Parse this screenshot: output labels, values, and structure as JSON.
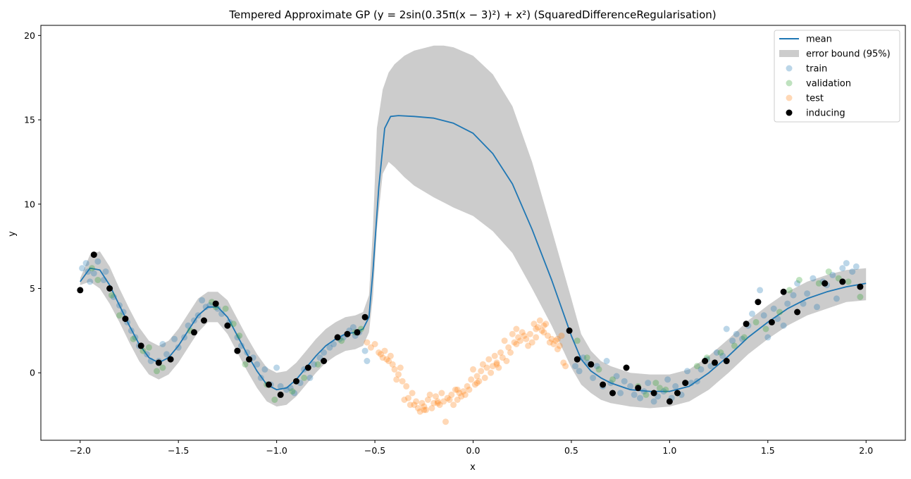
{
  "chart_data": {
    "type": "scatter",
    "title": "Tempered Approximate GP (y = 2sin(0.35π(x − 3)²) + x²) (SquaredDifferenceRegularisation)",
    "xlabel": "x",
    "ylabel": "y",
    "xlim": [
      -2.2,
      2.2
    ],
    "ylim": [
      -4.0,
      20.6
    ],
    "xticks": [
      -2.0,
      -1.5,
      -1.0,
      -0.5,
      0.0,
      0.5,
      1.0,
      1.5,
      2.0
    ],
    "xtick_labels": [
      "−2.0",
      "−1.5",
      "−1.0",
      "−0.5",
      "0.0",
      "0.5",
      "1.0",
      "1.5",
      "2.0"
    ],
    "yticks": [
      0,
      5,
      10,
      15,
      20
    ],
    "ytick_labels": [
      "0",
      "5",
      "10",
      "15",
      "20"
    ],
    "grid": false,
    "legend_position": "top-right",
    "colors": {
      "mean": "#1f77b4",
      "band": "#cccccc",
      "train": "#1f77b4",
      "validation": "#2ca02c",
      "test": "#ff7f0e",
      "inducing": "#000000"
    },
    "legend": [
      {
        "label": "mean",
        "kind": "line"
      },
      {
        "label": "error bound (95%)",
        "kind": "band"
      },
      {
        "label": "train",
        "kind": "train"
      },
      {
        "label": "validation",
        "kind": "validation"
      },
      {
        "label": "test",
        "kind": "test"
      },
      {
        "label": "inducing",
        "kind": "inducing"
      }
    ],
    "mean": {
      "x": [
        -2.0,
        -1.95,
        -1.9,
        -1.85,
        -1.8,
        -1.75,
        -1.7,
        -1.65,
        -1.6,
        -1.55,
        -1.5,
        -1.45,
        -1.4,
        -1.35,
        -1.3,
        -1.25,
        -1.2,
        -1.15,
        -1.1,
        -1.05,
        -1.0,
        -0.95,
        -0.9,
        -0.85,
        -0.8,
        -0.75,
        -0.7,
        -0.65,
        -0.6,
        -0.56,
        -0.53,
        -0.51,
        -0.48,
        -0.45,
        -0.42,
        -0.38,
        -0.3,
        -0.2,
        -0.1,
        0.0,
        0.1,
        0.2,
        0.3,
        0.4,
        0.5,
        0.55,
        0.6,
        0.65,
        0.7,
        0.8,
        0.9,
        1.0,
        1.1,
        1.2,
        1.3,
        1.4,
        1.5,
        1.6,
        1.7,
        1.8,
        1.9,
        2.0
      ],
      "y": [
        5.4,
        6.2,
        6.1,
        5.2,
        4.0,
        2.8,
        1.7,
        0.9,
        0.6,
        0.9,
        1.6,
        2.5,
        3.4,
        3.9,
        3.9,
        3.3,
        2.2,
        1.1,
        0.1,
        -0.7,
        -1.0,
        -0.9,
        -0.4,
        0.3,
        1.0,
        1.6,
        2.0,
        2.3,
        2.4,
        2.6,
        3.3,
        6.0,
        11.0,
        14.5,
        15.2,
        15.25,
        15.2,
        15.1,
        14.8,
        14.2,
        13.0,
        11.2,
        8.5,
        5.5,
        2.2,
        0.8,
        0.1,
        -0.3,
        -0.6,
        -1.0,
        -1.1,
        -1.1,
        -0.8,
        0.0,
        1.0,
        2.1,
        3.0,
        3.8,
        4.4,
        4.8,
        5.1,
        5.3
      ]
    },
    "error_band": {
      "x": [
        -2.0,
        -1.95,
        -1.9,
        -1.85,
        -1.8,
        -1.75,
        -1.7,
        -1.65,
        -1.6,
        -1.55,
        -1.5,
        -1.45,
        -1.4,
        -1.35,
        -1.3,
        -1.25,
        -1.2,
        -1.15,
        -1.1,
        -1.05,
        -1.0,
        -0.95,
        -0.9,
        -0.85,
        -0.8,
        -0.75,
        -0.7,
        -0.65,
        -0.6,
        -0.56,
        -0.53,
        -0.51,
        -0.49,
        -0.46,
        -0.43,
        -0.4,
        -0.35,
        -0.3,
        -0.2,
        -0.15,
        -0.1,
        0.0,
        0.1,
        0.2,
        0.3,
        0.4,
        0.5,
        0.55,
        0.6,
        0.65,
        0.7,
        0.8,
        0.9,
        1.0,
        1.1,
        1.2,
        1.3,
        1.4,
        1.5,
        1.6,
        1.7,
        1.8,
        1.9,
        2.0
      ],
      "upper": [
        5.6,
        7.0,
        7.2,
        6.3,
        5.0,
        3.8,
        2.7,
        1.9,
        1.6,
        1.9,
        2.6,
        3.5,
        4.4,
        4.8,
        4.8,
        4.3,
        3.2,
        2.1,
        1.1,
        0.3,
        0.0,
        0.1,
        0.6,
        1.3,
        2.0,
        2.6,
        3.0,
        3.3,
        3.4,
        3.6,
        4.6,
        8.5,
        14.5,
        16.8,
        17.8,
        18.3,
        18.8,
        19.1,
        19.4,
        19.4,
        19.3,
        18.8,
        17.7,
        15.8,
        12.5,
        8.5,
        4.4,
        2.3,
        1.3,
        0.7,
        0.4,
        0.0,
        -0.1,
        -0.1,
        0.2,
        1.0,
        2.0,
        3.1,
        4.0,
        4.8,
        5.4,
        5.8,
        6.1,
        6.2
      ],
      "lower": [
        5.2,
        5.4,
        5.0,
        4.1,
        3.0,
        1.8,
        0.7,
        -0.1,
        -0.4,
        -0.1,
        0.6,
        1.5,
        2.4,
        3.0,
        3.0,
        2.3,
        1.2,
        0.1,
        -0.9,
        -1.7,
        -2.0,
        -1.9,
        -1.4,
        -0.7,
        0.0,
        0.6,
        1.0,
        1.3,
        1.4,
        1.6,
        2.4,
        4.5,
        8.5,
        11.8,
        12.5,
        12.2,
        11.6,
        11.1,
        10.4,
        10.1,
        9.8,
        9.3,
        8.4,
        7.1,
        5.0,
        2.8,
        0.3,
        -0.7,
        -1.2,
        -1.6,
        -1.8,
        -2.0,
        -2.1,
        -2.0,
        -1.7,
        -1.0,
        0.0,
        1.1,
        2.0,
        2.8,
        3.4,
        3.8,
        4.2,
        4.3
      ]
    },
    "train": {
      "x": [
        -1.99,
        -1.97,
        -1.96,
        -1.95,
        -1.93,
        -1.91,
        -1.88,
        -1.87,
        -1.85,
        -1.83,
        -1.8,
        -1.78,
        -1.76,
        -1.74,
        -1.72,
        -1.7,
        -1.66,
        -1.64,
        -1.6,
        -1.58,
        -1.56,
        -1.52,
        -1.5,
        -1.47,
        -1.45,
        -1.42,
        -1.4,
        -1.38,
        -1.36,
        -1.34,
        -1.3,
        -1.28,
        -1.24,
        -1.2,
        -1.18,
        -1.15,
        -1.12,
        -1.1,
        -1.08,
        -1.06,
        -1.03,
        -1.0,
        -0.98,
        -0.95,
        -0.93,
        -0.91,
        -0.88,
        -0.86,
        -0.83,
        -0.81,
        -0.78,
        -0.76,
        -0.73,
        -0.71,
        -0.68,
        -0.66,
        -0.63,
        -0.61,
        -0.6,
        -0.58,
        -0.55,
        -0.54,
        0.52,
        0.54,
        0.56,
        0.58,
        0.61,
        0.63,
        0.66,
        0.68,
        0.7,
        0.73,
        0.75,
        0.77,
        0.8,
        0.82,
        0.85,
        0.87,
        0.89,
        0.92,
        0.94,
        0.97,
        0.99,
        1.01,
        1.03,
        1.06,
        1.09,
        1.11,
        1.14,
        1.16,
        1.19,
        1.21,
        1.24,
        1.27,
        1.29,
        1.32,
        1.34,
        1.37,
        1.4,
        1.42,
        1.45,
        1.46,
        1.48,
        1.5,
        1.53,
        1.55,
        1.58,
        1.6,
        1.63,
        1.65,
        1.68,
        1.7,
        1.73,
        1.75,
        1.78,
        1.8,
        1.83,
        1.85,
        1.88,
        1.9,
        1.93,
        1.95
      ],
      "y": [
        6.2,
        6.5,
        6.0,
        5.4,
        5.9,
        6.6,
        5.5,
        6.0,
        5.0,
        4.5,
        4.0,
        3.6,
        3.0,
        2.5,
        2.1,
        1.6,
        1.1,
        0.7,
        0.7,
        1.7,
        1.1,
        2.0,
        1.5,
        2.1,
        2.8,
        3.1,
        3.4,
        4.3,
        3.9,
        4.0,
        3.8,
        3.5,
        3.0,
        2.1,
        1.6,
        1.2,
        0.9,
        0.5,
        -0.3,
        0.2,
        -0.7,
        0.3,
        -0.8,
        -1.0,
        -0.9,
        -1.2,
        -0.6,
        0.2,
        -0.3,
        0.5,
        0.9,
        1.2,
        1.5,
        1.7,
        2.0,
        2.1,
        2.5,
        2.7,
        2.2,
        2.4,
        1.3,
        0.7,
        0.4,
        0.1,
        0.9,
        0.6,
        -0.3,
        0.4,
        -0.8,
        0.7,
        -0.6,
        -0.2,
        -1.2,
        -0.5,
        -0.8,
        -1.3,
        -1.5,
        -1.1,
        -0.6,
        -1.7,
        -1.4,
        -1.1,
        -0.4,
        -1.5,
        -0.8,
        -1.3,
        0.1,
        -0.6,
        -0.5,
        0.2,
        0.8,
        0.4,
        1.2,
        1.0,
        2.6,
        1.9,
        2.3,
        2.0,
        2.8,
        3.5,
        4.2,
        4.9,
        3.4,
        2.1,
        3.8,
        3.2,
        2.8,
        4.1,
        4.6,
        5.3,
        4.1,
        4.7,
        5.6,
        3.9,
        5.4,
        5.2,
        5.8,
        4.4,
        6.2,
        6.5,
        6.0,
        6.3
      ],
      "color": "#1f77b4"
    },
    "validation": {
      "x": [
        -1.94,
        -1.91,
        -1.84,
        -1.8,
        -1.73,
        -1.68,
        -1.65,
        -1.61,
        -1.58,
        -1.44,
        -1.33,
        -1.31,
        -1.26,
        -1.22,
        -1.19,
        -1.16,
        -1.05,
        -1.01,
        -0.92,
        -0.86,
        -0.79,
        -0.67,
        -0.6,
        -0.57,
        0.53,
        0.58,
        0.64,
        0.71,
        0.84,
        0.88,
        0.93,
        0.95,
        0.98,
        1.14,
        1.19,
        1.26,
        1.33,
        1.38,
        1.44,
        1.49,
        1.56,
        1.61,
        1.66,
        1.76,
        1.81,
        1.86,
        1.91,
        1.97
      ],
      "y": [
        6.2,
        5.5,
        4.6,
        3.4,
        2.0,
        1.3,
        1.5,
        0.1,
        0.3,
        2.5,
        4.2,
        3.9,
        3.8,
        2.9,
        2.2,
        0.5,
        -0.7,
        -1.6,
        -1.1,
        -0.3,
        0.5,
        1.9,
        2.4,
        2.6,
        1.9,
        0.9,
        0.2,
        -0.4,
        -0.8,
        -1.3,
        -0.6,
        -0.9,
        -1.0,
        0.4,
        0.9,
        1.2,
        1.6,
        2.1,
        3.0,
        2.6,
        3.6,
        4.9,
        5.5,
        5.3,
        6.0,
        5.6,
        5.4,
        4.5
      ],
      "color": "#2ca02c"
    },
    "test": {
      "x": [
        -0.54,
        -0.52,
        -0.5,
        -0.48,
        -0.46,
        -0.45,
        -0.43,
        -0.42,
        -0.41,
        -0.4,
        -0.38,
        -0.37,
        -0.36,
        -0.34,
        -0.33,
        -0.31,
        -0.3,
        -0.29,
        -0.28,
        -0.27,
        -0.26,
        -0.25,
        -0.24,
        -0.23,
        -0.22,
        -0.21,
        -0.2,
        -0.19,
        -0.18,
        -0.17,
        -0.16,
        -0.15,
        -0.14,
        -0.13,
        -0.12,
        -0.11,
        -0.1,
        -0.09,
        -0.08,
        -0.07,
        -0.06,
        -0.05,
        -0.04,
        -0.03,
        -0.02,
        -0.01,
        0.0,
        0.01,
        0.02,
        0.03,
        0.04,
        0.05,
        0.06,
        0.07,
        0.08,
        0.09,
        0.1,
        0.11,
        0.12,
        0.13,
        0.14,
        0.15,
        0.16,
        0.17,
        0.18,
        0.19,
        0.2,
        0.21,
        0.22,
        0.23,
        0.24,
        0.25,
        0.26,
        0.27,
        0.28,
        0.29,
        0.3,
        0.31,
        0.32,
        0.33,
        0.34,
        0.35,
        0.36,
        0.37,
        0.38,
        0.39,
        0.4,
        0.41,
        0.42,
        0.43,
        0.44,
        0.45,
        0.46,
        0.47,
        -0.47,
        -0.44,
        -0.39,
        -0.35,
        -0.32,
        -0.25,
        -0.18,
        -0.08,
        0.02,
        0.12,
        0.22,
        0.32,
        0.36,
        0.43
      ],
      "y": [
        1.8,
        1.5,
        1.7,
        1.2,
        0.9,
        1.3,
        0.7,
        1.0,
        0.5,
        0.2,
        -0.1,
        0.3,
        -0.5,
        -0.8,
        -1.5,
        -1.2,
        -1.9,
        -1.7,
        -2.1,
        -2.3,
        -1.8,
        -2.0,
        -2.2,
        -1.6,
        -1.3,
        -2.1,
        -1.8,
        -1.4,
        -1.7,
        -1.9,
        -1.2,
        -1.7,
        -2.9,
        -1.5,
        -1.6,
        -1.3,
        -1.9,
        -1.0,
        -1.6,
        -1.2,
        -1.4,
        -1.1,
        -1.3,
        -0.8,
        -1.0,
        -0.4,
        0.2,
        -0.7,
        -0.2,
        -0.5,
        0.1,
        0.5,
        -0.3,
        0.3,
        0.8,
        0.0,
        0.4,
        1.0,
        0.6,
        0.3,
        1.2,
        0.9,
        1.9,
        0.7,
        1.5,
        1.2,
        2.3,
        1.8,
        2.6,
        2.1,
        1.9,
        2.4,
        2.2,
        2.0,
        1.6,
        2.3,
        1.8,
        2.9,
        2.1,
        2.7,
        3.1,
        2.5,
        2.4,
        2.9,
        2.2,
        1.8,
        2.0,
        1.7,
        1.9,
        2.0,
        1.6,
        2.2,
        0.6,
        0.4,
        1.1,
        0.8,
        -0.4,
        -1.6,
        -1.9,
        -2.2,
        -1.8,
        -1.0,
        -0.6,
        0.5,
        1.7,
        2.6,
        2.8,
        1.4
      ],
      "color": "#ff7f0e"
    },
    "inducing": {
      "x": [
        -2.0,
        -1.93,
        -1.85,
        -1.77,
        -1.69,
        -1.6,
        -1.54,
        -1.42,
        -1.37,
        -1.31,
        -1.25,
        -1.2,
        -1.14,
        -1.04,
        -0.98,
        -0.9,
        -0.84,
        -0.76,
        -0.69,
        -0.64,
        -0.59,
        -0.55,
        0.49,
        0.53,
        0.6,
        0.66,
        0.71,
        0.78,
        0.84,
        0.92,
        1.0,
        1.04,
        1.08,
        1.18,
        1.23,
        1.29,
        1.39,
        1.45,
        1.52,
        1.58,
        1.65,
        1.79,
        1.88,
        1.97
      ],
      "y": [
        4.9,
        7.0,
        5.0,
        3.2,
        1.6,
        0.6,
        0.8,
        2.4,
        3.1,
        4.1,
        2.8,
        1.3,
        0.8,
        -0.7,
        -1.3,
        -0.5,
        0.3,
        0.7,
        2.1,
        2.3,
        2.4,
        3.3,
        2.5,
        0.8,
        0.5,
        -0.7,
        -1.2,
        0.3,
        -0.9,
        -1.2,
        -1.7,
        -1.2,
        -0.6,
        0.7,
        0.6,
        0.7,
        2.9,
        4.2,
        3.0,
        4.8,
        3.6,
        5.3,
        5.4,
        5.1
      ],
      "color": "#000000"
    }
  }
}
